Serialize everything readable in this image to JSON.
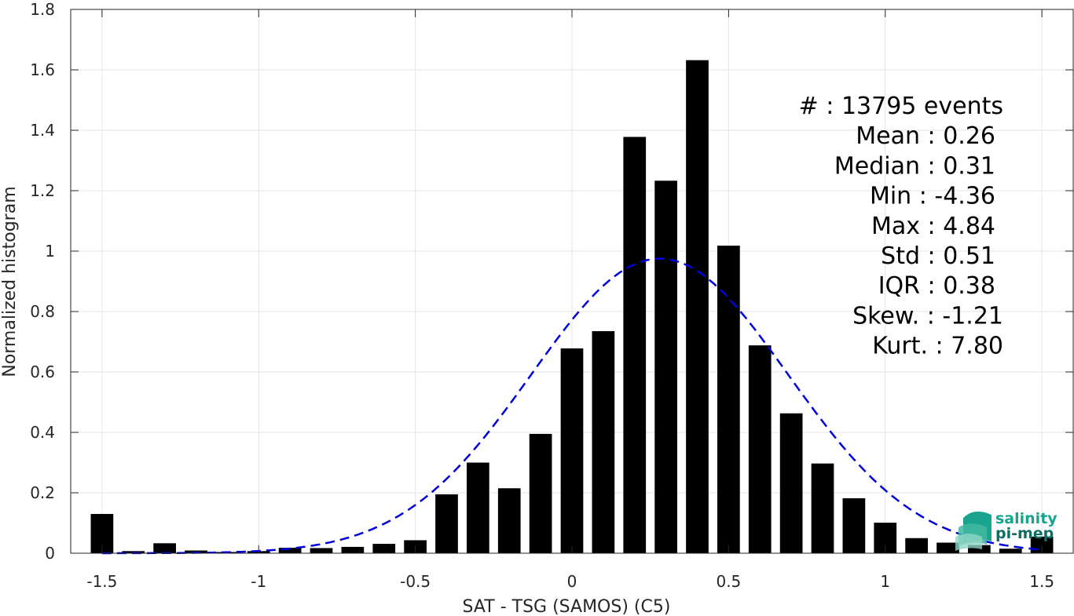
{
  "chart_data": {
    "type": "bar",
    "xlabel": "SAT - TSG (SAMOS) (C5)",
    "ylabel": "Normalized histogram",
    "xlim": [
      -1.6,
      1.6
    ],
    "ylim": [
      0,
      1.8
    ],
    "grid": true,
    "xticks": [
      -1.5,
      -1,
      -0.5,
      0,
      0.5,
      1,
      1.5
    ],
    "xtick_labels": [
      "-1.5",
      "-1",
      "-0.5",
      "0",
      "0.5",
      "1",
      "1.5"
    ],
    "yticks": [
      0,
      0.2,
      0.4,
      0.6,
      0.8,
      1,
      1.2,
      1.4,
      1.6,
      1.8
    ],
    "ytick_labels": [
      "0",
      "0.2",
      "0.4",
      "0.6",
      "0.8",
      "1",
      "1.2",
      "1.4",
      "1.6",
      "1.8"
    ],
    "bin_width": 0.1,
    "bars": {
      "x": [
        -1.5,
        -1.4,
        -1.3,
        -1.2,
        -1.1,
        -1.0,
        -0.9,
        -0.8,
        -0.7,
        -0.6,
        -0.5,
        -0.4,
        -0.3,
        -0.2,
        -0.1,
        0.0,
        0.1,
        0.2,
        0.3,
        0.4,
        0.5,
        0.6,
        0.7,
        0.8,
        0.9,
        1.0,
        1.1,
        1.2,
        1.3,
        1.4,
        1.5
      ],
      "values": [
        0.13,
        0.007,
        0.033,
        0.009,
        0.004,
        0.007,
        0.018,
        0.017,
        0.021,
        0.031,
        0.043,
        0.195,
        0.3,
        0.215,
        0.395,
        0.678,
        0.735,
        1.378,
        1.233,
        1.632,
        1.018,
        0.688,
        0.463,
        0.297,
        0.182,
        0.101,
        0.05,
        0.035,
        0.027,
        0.015,
        0.055
      ],
      "color": "#000000"
    },
    "fit_curve": {
      "kind": "gaussian",
      "mean": 0.28,
      "std": 0.41,
      "peak": 0.975,
      "color": "#0000dd",
      "style": "dashed"
    },
    "stats": [
      {
        "label": "#  : 13795 events"
      },
      {
        "label": "Mean : 0.26"
      },
      {
        "label": "Median : 0.31"
      },
      {
        "label": "Min : -4.36"
      },
      {
        "label": "Max : 4.84"
      },
      {
        "label": "Std : 0.51"
      },
      {
        "label": "IQR : 0.38"
      },
      {
        "label": "Skew. : -1.21"
      },
      {
        "label": "Kurt. : 7.80"
      }
    ]
  },
  "logo": {
    "line1": "salinity",
    "line2": "pi-mep",
    "color_primary": "#1aa38e",
    "color_secondary": "#0d6e64"
  }
}
